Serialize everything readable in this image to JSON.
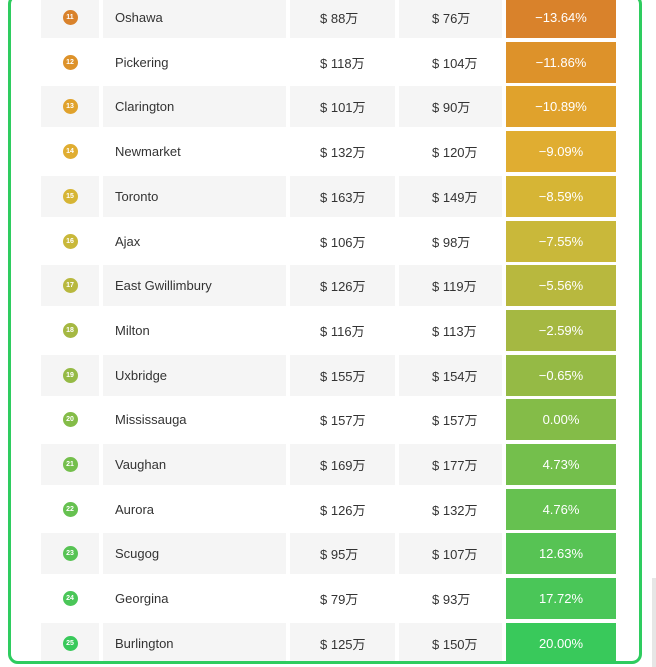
{
  "table": {
    "rows": [
      {
        "rank": "11",
        "city": "Oshawa",
        "price_prev": "$ 88万",
        "price_curr": "$ 76万",
        "change": "−13.64%",
        "badge_color": "#d9822b",
        "change_color": "#d9822b"
      },
      {
        "rank": "12",
        "city": "Pickering",
        "price_prev": "$ 118万",
        "price_curr": "$ 104万",
        "change": "−11.86%",
        "badge_color": "#dd922a",
        "change_color": "#dd922a"
      },
      {
        "rank": "13",
        "city": "Clarington",
        "price_prev": "$ 101万",
        "price_curr": "$ 90万",
        "change": "−10.89%",
        "badge_color": "#e0a22c",
        "change_color": "#e0a22c"
      },
      {
        "rank": "14",
        "city": "Newmarket",
        "price_prev": "$ 132万",
        "price_curr": "$ 120万",
        "change": "−9.09%",
        "badge_color": "#e0ad31",
        "change_color": "#e0ad31"
      },
      {
        "rank": "15",
        "city": "Toronto",
        "price_prev": "$ 163万",
        "price_curr": "$ 149万",
        "change": "−8.59%",
        "badge_color": "#d6b535",
        "change_color": "#d6b535"
      },
      {
        "rank": "16",
        "city": "Ajax",
        "price_prev": "$ 106万",
        "price_curr": "$ 98万",
        "change": "−7.55%",
        "badge_color": "#c9b83a",
        "change_color": "#c9b83a"
      },
      {
        "rank": "17",
        "city": "East Gwillimbury",
        "price_prev": "$ 126万",
        "price_curr": "$ 119万",
        "change": "−5.56%",
        "badge_color": "#b8b83e",
        "change_color": "#b8b83e"
      },
      {
        "rank": "18",
        "city": "Milton",
        "price_prev": "$ 116万",
        "price_curr": "$ 113万",
        "change": "−2.59%",
        "badge_color": "#a5b842",
        "change_color": "#a5b842"
      },
      {
        "rank": "19",
        "city": "Uxbridge",
        "price_prev": "$ 155万",
        "price_curr": "$ 154万",
        "change": "−0.65%",
        "badge_color": "#95ba45",
        "change_color": "#95ba45"
      },
      {
        "rank": "20",
        "city": "Mississauga",
        "price_prev": "$ 157万",
        "price_curr": "$ 157万",
        "change": "0.00%",
        "badge_color": "#84bc48",
        "change_color": "#84bc48"
      },
      {
        "rank": "21",
        "city": "Vaughan",
        "price_prev": "$ 169万",
        "price_curr": "$ 177万",
        "change": "4.73%",
        "badge_color": "#74bf4c",
        "change_color": "#74bf4c"
      },
      {
        "rank": "22",
        "city": "Aurora",
        "price_prev": "$ 126万",
        "price_curr": "$ 132万",
        "change": "4.76%",
        "badge_color": "#66c150",
        "change_color": "#66c150"
      },
      {
        "rank": "23",
        "city": "Scugog",
        "price_prev": "$ 95万",
        "price_curr": "$ 107万",
        "change": "12.63%",
        "badge_color": "#57c354",
        "change_color": "#57c354"
      },
      {
        "rank": "24",
        "city": "Georgina",
        "price_prev": "$ 79万",
        "price_curr": "$ 93万",
        "change": "17.72%",
        "badge_color": "#4ac658",
        "change_color": "#4ac658"
      },
      {
        "rank": "25",
        "city": "Burlington",
        "price_prev": "$ 125万",
        "price_curr": "$ 150万",
        "change": "20.00%",
        "badge_color": "#39c95b",
        "change_color": "#39c95b"
      }
    ]
  }
}
